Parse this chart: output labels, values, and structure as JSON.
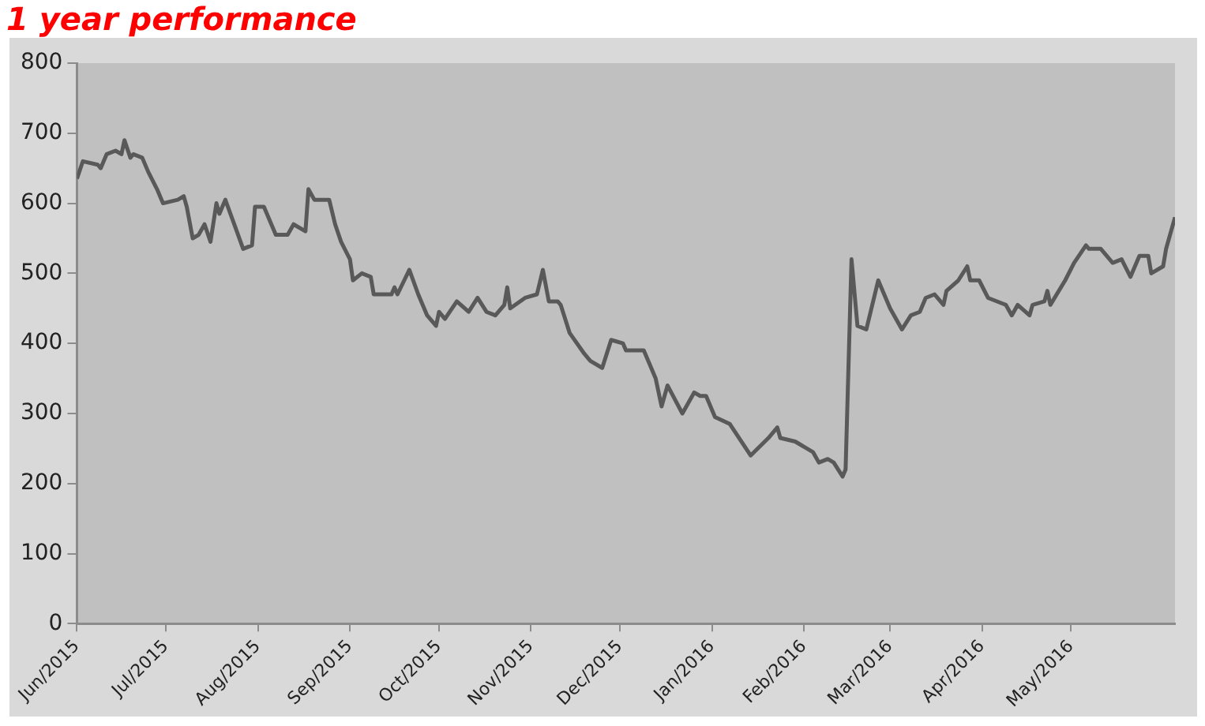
{
  "chart_data": {
    "type": "line",
    "title": "1 year performance",
    "grid": false,
    "legend": false,
    "marker": "none",
    "line_style": "solid",
    "xlim": [
      "2015-06-01",
      "2016-06-05"
    ],
    "xticks": [
      {
        "value": "2015-06-01",
        "label": "Jun/2015"
      },
      {
        "value": "2015-07-01",
        "label": "Jul/2015"
      },
      {
        "value": "2015-08-01",
        "label": "Aug/2015"
      },
      {
        "value": "2015-09-01",
        "label": "Sep/2015"
      },
      {
        "value": "2015-10-01",
        "label": "Oct/2015"
      },
      {
        "value": "2015-11-01",
        "label": "Nov/2015"
      },
      {
        "value": "2015-12-01",
        "label": "Dec/2015"
      },
      {
        "value": "2016-01-01",
        "label": "Jan/2016"
      },
      {
        "value": "2016-02-01",
        "label": "Feb/2016"
      },
      {
        "value": "2016-03-01",
        "label": "Mar/2016"
      },
      {
        "value": "2016-04-01",
        "label": "Apr/2016"
      },
      {
        "value": "2016-05-01",
        "label": "May/2016"
      }
    ],
    "ylim": [
      0,
      800
    ],
    "yticks": [
      0,
      100,
      200,
      300,
      400,
      500,
      600,
      700,
      800
    ],
    "series": [
      {
        "color": "#595959",
        "x": [
          "2015-06-01",
          "2015-06-03",
          "2015-06-08",
          "2015-06-09",
          "2015-06-11",
          "2015-06-14",
          "2015-06-16",
          "2015-06-17",
          "2015-06-19",
          "2015-06-20",
          "2015-06-23",
          "2015-06-25",
          "2015-06-28",
          "2015-06-30",
          "2015-07-05",
          "2015-07-07",
          "2015-07-08",
          "2015-07-10",
          "2015-07-12",
          "2015-07-14",
          "2015-07-16",
          "2015-07-18",
          "2015-07-19",
          "2015-07-21",
          "2015-07-24",
          "2015-07-27",
          "2015-07-30",
          "2015-07-31",
          "2015-08-03",
          "2015-08-05",
          "2015-08-07",
          "2015-08-11",
          "2015-08-13",
          "2015-08-17",
          "2015-08-18",
          "2015-08-20",
          "2015-08-25",
          "2015-08-27",
          "2015-08-29",
          "2015-09-01",
          "2015-09-02",
          "2015-09-05",
          "2015-09-08",
          "2015-09-09",
          "2015-09-15",
          "2015-09-16",
          "2015-09-17",
          "2015-09-21",
          "2015-09-24",
          "2015-09-27",
          "2015-09-30",
          "2015-10-01",
          "2015-10-03",
          "2015-10-07",
          "2015-10-11",
          "2015-10-14",
          "2015-10-17",
          "2015-10-20",
          "2015-10-23",
          "2015-10-24",
          "2015-10-25",
          "2015-10-30",
          "2015-11-03",
          "2015-11-05",
          "2015-11-07",
          "2015-11-10",
          "2015-11-11",
          "2015-11-14",
          "2015-11-19",
          "2015-11-21",
          "2015-11-25",
          "2015-11-28",
          "2015-12-02",
          "2015-12-03",
          "2015-12-09",
          "2015-12-13",
          "2015-12-15",
          "2015-12-17",
          "2015-12-22",
          "2015-12-26",
          "2015-12-28",
          "2015-12-30",
          "2016-01-02",
          "2016-01-07",
          "2016-01-14",
          "2016-01-20",
          "2016-01-23",
          "2016-01-24",
          "2016-01-29",
          "2016-02-04",
          "2016-02-06",
          "2016-02-09",
          "2016-02-11",
          "2016-02-14",
          "2016-02-15",
          "2016-02-17",
          "2016-02-19",
          "2016-02-22",
          "2016-02-26",
          "2016-03-01",
          "2016-03-05",
          "2016-03-08",
          "2016-03-11",
          "2016-03-13",
          "2016-03-16",
          "2016-03-19",
          "2016-03-20",
          "2016-03-24",
          "2016-03-27",
          "2016-03-28",
          "2016-03-31",
          "2016-04-03",
          "2016-04-09",
          "2016-04-11",
          "2016-04-13",
          "2016-04-17",
          "2016-04-18",
          "2016-04-22",
          "2016-04-23",
          "2016-04-24",
          "2016-04-29",
          "2016-05-02",
          "2016-05-06",
          "2016-05-07",
          "2016-05-11",
          "2016-05-15",
          "2016-05-18",
          "2016-05-21",
          "2016-05-24",
          "2016-05-27",
          "2016-05-28",
          "2016-06-01",
          "2016-06-02",
          "2016-06-05"
        ],
        "values": [
          635,
          660,
          655,
          650,
          670,
          675,
          670,
          690,
          665,
          670,
          665,
          645,
          620,
          600,
          605,
          610,
          595,
          550,
          555,
          570,
          545,
          600,
          585,
          605,
          570,
          535,
          540,
          595,
          595,
          575,
          555,
          555,
          570,
          560,
          620,
          605,
          605,
          570,
          545,
          520,
          490,
          500,
          495,
          470,
          470,
          480,
          470,
          505,
          470,
          440,
          425,
          445,
          435,
          460,
          445,
          465,
          445,
          440,
          455,
          480,
          450,
          465,
          470,
          505,
          460,
          460,
          455,
          415,
          385,
          375,
          365,
          405,
          400,
          390,
          390,
          350,
          310,
          340,
          300,
          330,
          325,
          325,
          295,
          285,
          240,
          265,
          280,
          265,
          260,
          245,
          230,
          235,
          230,
          210,
          220,
          520,
          425,
          420,
          490,
          450,
          420,
          440,
          445,
          465,
          470,
          455,
          475,
          490,
          510,
          490,
          490,
          465,
          455,
          440,
          455,
          440,
          455,
          460,
          475,
          455,
          490,
          515,
          540,
          535,
          535,
          515,
          520,
          495,
          525,
          525,
          500,
          510,
          535,
          580
        ]
      }
    ]
  }
}
